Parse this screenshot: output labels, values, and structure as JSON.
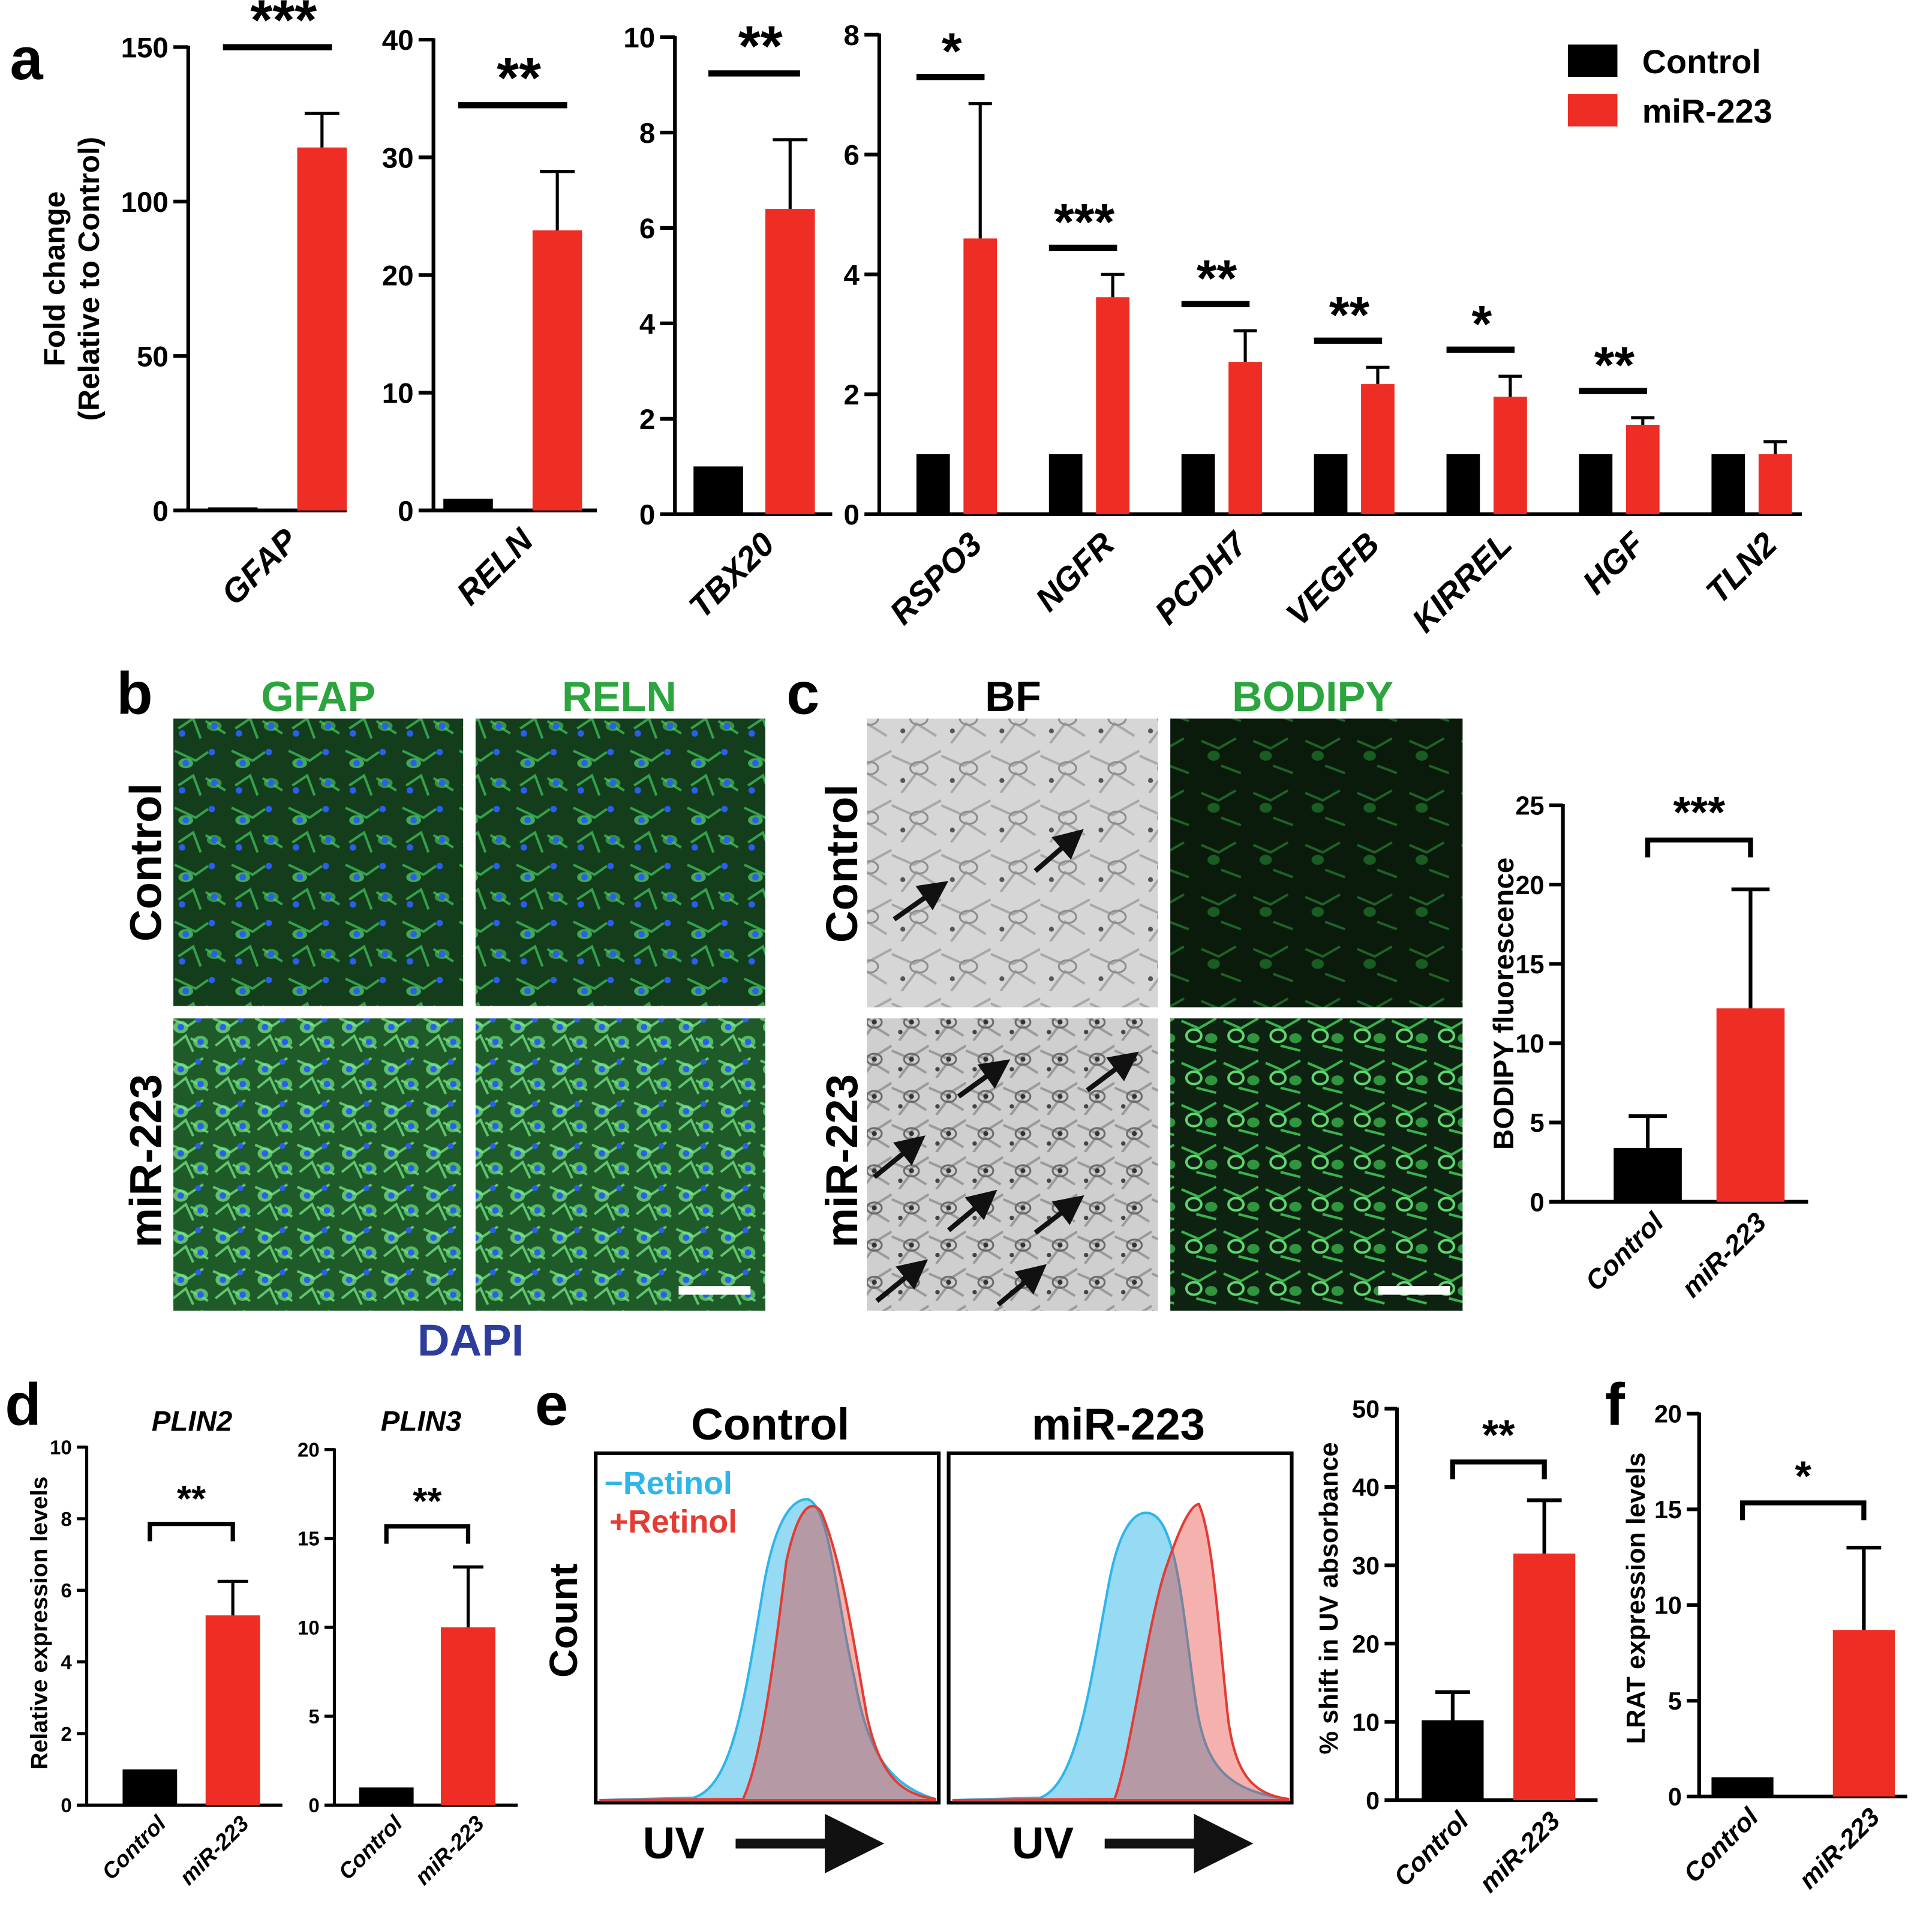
{
  "colors": {
    "control": "#000000",
    "mir": "#ee2d24",
    "green": "#2ca53e",
    "blue": "#2e3d9c",
    "cyan": "#2eb6ea",
    "red": "#e53b32"
  },
  "panel_letters": [
    "a",
    "b",
    "c",
    "d",
    "e",
    "f"
  ],
  "legend": {
    "control": "Control",
    "mir": "miR-223"
  },
  "panel_a": {
    "ylabel_line1": "Fold change",
    "ylabel_line2": "(Relative to Control)"
  },
  "panel_b": {
    "col_labels": [
      "GFAP",
      "RELN"
    ],
    "row_labels": [
      "Control",
      "miR-223"
    ],
    "bottom_label": "DAPI"
  },
  "panel_c": {
    "col_labels": [
      "BF",
      "BODIPY"
    ],
    "row_labels": [
      "Control",
      "miR-223"
    ]
  },
  "panel_e": {
    "titles": [
      "Control",
      "miR-223"
    ],
    "legend_minus": "−Retinol",
    "legend_plus": "+Retinol",
    "ylabel": "Count",
    "xlabel": "UV"
  },
  "chart_data": [
    {
      "panel": "a",
      "type": "bar",
      "xlabel": "",
      "ylabel": "Fold change (Relative to Control)",
      "ylim": [
        0,
        150
      ],
      "ticks": [
        0,
        50,
        100,
        150
      ],
      "categories": [
        "GFAP"
      ],
      "series": [
        {
          "name": "Control",
          "values": [
            1
          ]
        },
        {
          "name": "miR-223",
          "values": [
            117.5
          ]
        }
      ],
      "errors": [
        [
          0
        ],
        [
          11
        ]
      ],
      "significance": [
        "***"
      ]
    },
    {
      "panel": "a",
      "type": "bar",
      "xlabel": "",
      "ylabel": "",
      "ylim": [
        0,
        40
      ],
      "ticks": [
        0,
        10,
        20,
        30,
        40
      ],
      "categories": [
        "RELN"
      ],
      "series": [
        {
          "name": "Control",
          "values": [
            1
          ]
        },
        {
          "name": "miR-223",
          "values": [
            23.8
          ]
        }
      ],
      "errors": [
        [
          0
        ],
        [
          5
        ]
      ],
      "significance": [
        "**"
      ]
    },
    {
      "panel": "a",
      "type": "bar",
      "xlabel": "",
      "ylabel": "",
      "ylim": [
        0,
        10
      ],
      "ticks": [
        0,
        2,
        4,
        6,
        8,
        10
      ],
      "categories": [
        "TBX20"
      ],
      "series": [
        {
          "name": "Control",
          "values": [
            1
          ]
        },
        {
          "name": "miR-223",
          "values": [
            6.4
          ]
        }
      ],
      "errors": [
        [
          0
        ],
        [
          1.45
        ]
      ],
      "significance": [
        "**"
      ]
    },
    {
      "panel": "a",
      "type": "bar",
      "xlabel": "",
      "ylabel": "",
      "ylim": [
        0,
        8
      ],
      "ticks": [
        0,
        2,
        4,
        6,
        8
      ],
      "categories": [
        "RSPO3",
        "NGFR",
        "PCDH7",
        "VEGFB",
        "KIRREL",
        "HGF",
        "TLN2"
      ],
      "series": [
        {
          "name": "Control",
          "values": [
            1,
            1,
            1,
            1,
            1,
            1,
            1
          ]
        },
        {
          "name": "miR-223",
          "values": [
            4.6,
            3.62,
            2.54,
            2.17,
            1.96,
            1.49,
            1.0
          ]
        }
      ],
      "errors": [
        [
          0,
          0,
          0,
          0,
          0,
          0,
          0
        ],
        [
          2.25,
          0.38,
          0.52,
          0.28,
          0.34,
          0.12,
          0.21
        ]
      ],
      "significance": [
        "*",
        "***",
        "**",
        "**",
        "*",
        "**",
        ""
      ]
    },
    {
      "panel": "c",
      "type": "bar",
      "xlabel": "",
      "ylabel": "BODIPY fluorescence",
      "ylim": [
        0,
        25
      ],
      "ticks": [
        0,
        5,
        10,
        15,
        20,
        25
      ],
      "categories": [
        "Control",
        "miR-223"
      ],
      "values": [
        3.4,
        12.2
      ],
      "errors": [
        2.0,
        7.5
      ],
      "significance": "***"
    },
    {
      "panel": "d",
      "type": "bar",
      "title": "PLIN2",
      "xlabel": "",
      "ylabel": "Relative expression levels",
      "ylim": [
        0,
        10
      ],
      "ticks": [
        0,
        2,
        4,
        6,
        8,
        10
      ],
      "categories": [
        "Control",
        "miR-223"
      ],
      "values": [
        1.0,
        5.3
      ],
      "errors": [
        0,
        0.95
      ],
      "significance": "**"
    },
    {
      "panel": "d",
      "type": "bar",
      "title": "PLIN3",
      "xlabel": "",
      "ylabel": "",
      "ylim": [
        0,
        20
      ],
      "ticks": [
        0,
        5,
        10,
        15,
        20
      ],
      "categories": [
        "Control",
        "miR-223"
      ],
      "values": [
        1.0,
        10.0
      ],
      "errors": [
        0,
        3.4
      ],
      "significance": "**"
    },
    {
      "panel": "e",
      "type": "bar",
      "xlabel": "",
      "ylabel": "% shift in UV absorbance",
      "ylim": [
        0,
        50
      ],
      "ticks": [
        0,
        10,
        20,
        30,
        40,
        50
      ],
      "categories": [
        "Control",
        "miR-223"
      ],
      "values": [
        10.2,
        31.5
      ],
      "errors": [
        3.6,
        6.8
      ],
      "significance": "**"
    },
    {
      "panel": "f",
      "type": "bar",
      "xlabel": "",
      "ylabel": "LRAT expression levels",
      "ylim": [
        0,
        20
      ],
      "ticks": [
        0,
        5,
        10,
        15,
        20
      ],
      "categories": [
        "Control",
        "miR-223"
      ],
      "values": [
        1.0,
        8.7
      ],
      "errors": [
        0,
        4.3
      ],
      "significance": "*"
    }
  ]
}
